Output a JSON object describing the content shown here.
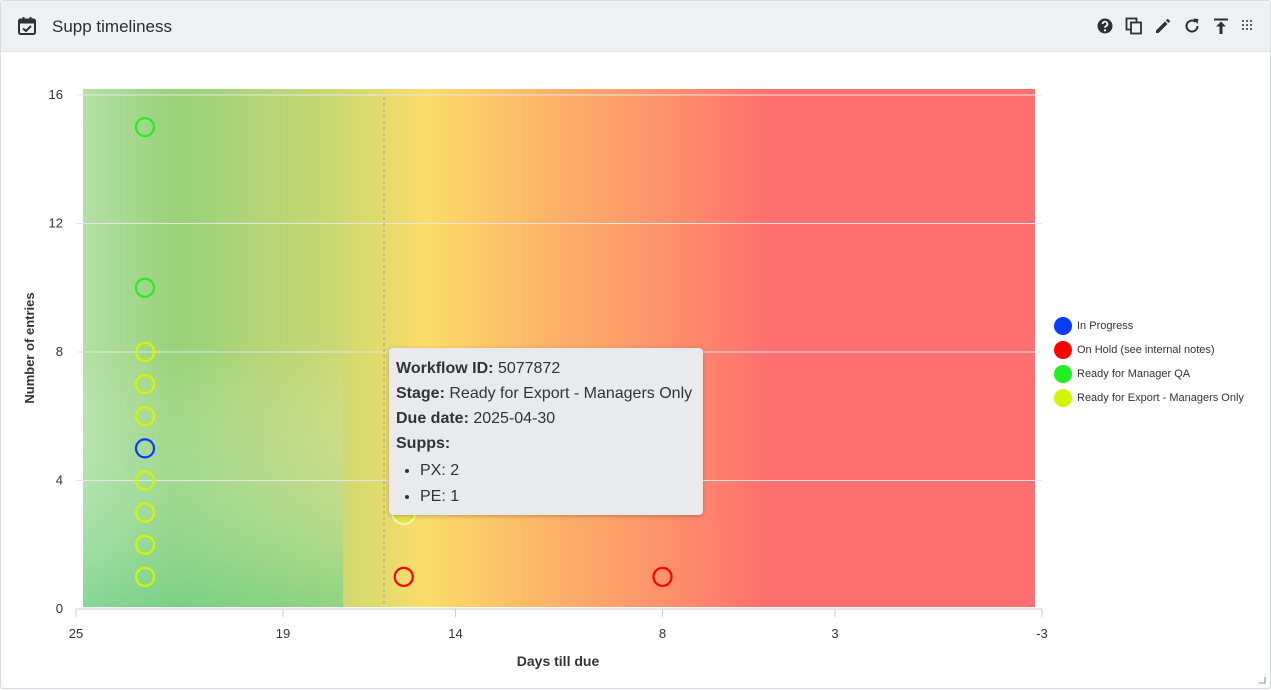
{
  "panel": {
    "title": "Supp timeliness",
    "title_icon": "calendar-check-icon",
    "tools": [
      {
        "name": "help-icon"
      },
      {
        "name": "duplicate-icon"
      },
      {
        "name": "edit-icon"
      },
      {
        "name": "refresh-icon"
      },
      {
        "name": "export-icon"
      },
      {
        "name": "drag-handle-icon"
      }
    ]
  },
  "chart_data": {
    "type": "scatter",
    "xlabel": "Days till due",
    "ylabel": "Number of entries",
    "xlim": [
      25,
      -3
    ],
    "ylim": [
      0,
      16
    ],
    "x_ticks": [
      25,
      19,
      14,
      8,
      3,
      -3
    ],
    "y_ticks": [
      0,
      4,
      8,
      12,
      16
    ],
    "grid": true,
    "legend_position": "right",
    "background": "gradient green (far) to yellow to red (due)",
    "series": [
      {
        "name": "In Progress",
        "color": "#0a3cff",
        "points": [
          {
            "x": 23,
            "y": 5
          }
        ]
      },
      {
        "name": "On Hold (see internal notes)",
        "color": "#ff0000",
        "points": [
          {
            "x": 15.5,
            "y": 1
          },
          {
            "x": 8,
            "y": 1
          }
        ]
      },
      {
        "name": "Ready for Manager QA",
        "color": "#22ee22",
        "points": [
          {
            "x": 23,
            "y": 15
          },
          {
            "x": 23,
            "y": 10
          }
        ]
      },
      {
        "name": "Ready for Export - Managers Only",
        "color": "#d4f500",
        "points": [
          {
            "x": 23,
            "y": 8
          },
          {
            "x": 23,
            "y": 7
          },
          {
            "x": 23,
            "y": 6
          },
          {
            "x": 23,
            "y": 4
          },
          {
            "x": 23,
            "y": 3
          },
          {
            "x": 23,
            "y": 2
          },
          {
            "x": 23,
            "y": 1
          },
          {
            "x": 15.5,
            "y": 3
          }
        ]
      }
    ]
  },
  "tooltip": {
    "workflow_label": "Workflow ID:",
    "workflow_value": "5077872",
    "stage_label": "Stage:",
    "stage_value": "Ready for Export - Managers Only",
    "due_label": "Due date:",
    "due_value": "2025-04-30",
    "supps_label": "Supps:",
    "supps": [
      "PX: 2",
      "PE: 1"
    ]
  },
  "colors": {
    "header_bg": "#eef0f2",
    "zone_green": "#5fcf8c",
    "zone_yellow": "#fbdd69",
    "zone_red": "#ff6f6f"
  }
}
